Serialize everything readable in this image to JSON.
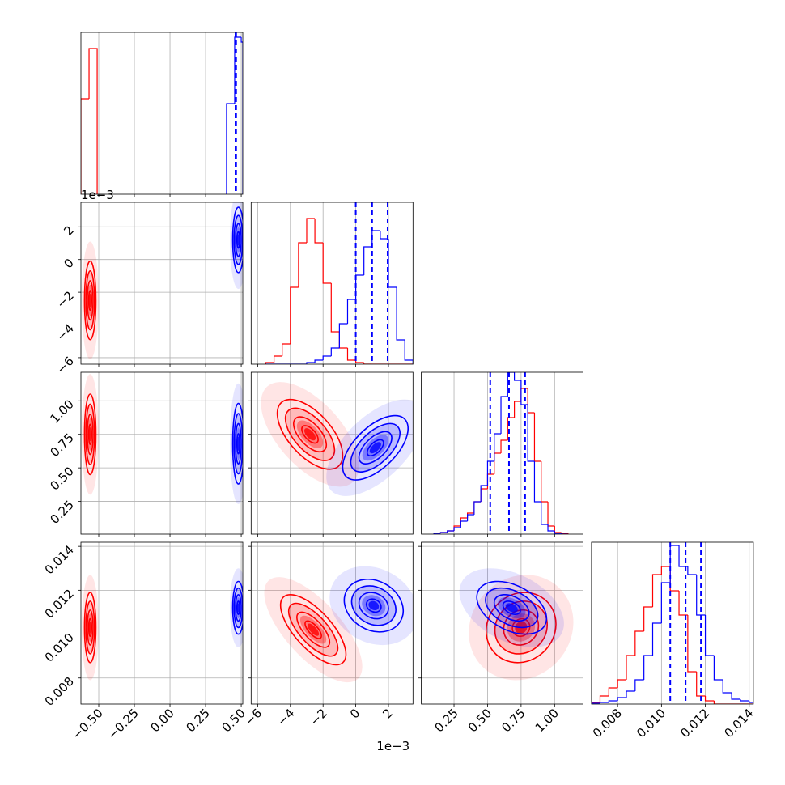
{
  "chart_data": {
    "type": "corner",
    "series": [
      {
        "color": "#ff0000"
      },
      {
        "color": "#0000ff"
      }
    ],
    "hist_ylim": [
      0,
      1
    ],
    "variables": [
      {
        "lim": [
          -0.625,
          0.511
        ],
        "ticks": [
          {
            "value": -0.5,
            "label": "−0.50"
          },
          {
            "value": -0.25,
            "label": "−0.25"
          },
          {
            "value": 0,
            "label": "0.00"
          },
          0.25,
          {
            "value": 0.5,
            "label": "0.50"
          }
        ],
        "hists": [
          {
            "bins": [
              -0.625,
              -0.568,
              -0.511
            ],
            "counts": [
              0.59,
              0.9
            ]
          },
          {
            "bins": [
              0.397,
              0.454,
              0.5,
              0.511
            ],
            "counts": [
              0.56,
              0.97,
              0.94
            ],
            "quantiles": [
              0.46,
              0.462,
              0.464
            ]
          }
        ]
      },
      {
        "lim": [
          -6.4,
          3.5
        ],
        "offset": "1e−3",
        "ticks": [
          {
            "value": -6,
            "label": "−6"
          },
          {
            "value": -4,
            "label": "−4"
          },
          {
            "value": -2,
            "label": "−2"
          },
          0,
          2
        ],
        "hists": [
          {
            "bins": [
              -5.5,
              -5,
              -4.5,
              -4,
              -3.5,
              -3,
              -2.5,
              -2,
              -1.5,
              -1,
              -0.5,
              0,
              0.5,
              1,
              1.5,
              2,
              2.5,
              3,
              3.5
            ],
            "counts": [
              0.01,
              0.05,
              0.125,
              0.475,
              0.75,
              0.9,
              0.75,
              0.5,
              0.2,
              0.1,
              0.025,
              0.01,
              0,
              0,
              0,
              0,
              0,
              0
            ]
          },
          {
            "bins": [
              -5.5,
              -5,
              -4.5,
              -4,
              -3.5,
              -3,
              -2.5,
              -2,
              -1.5,
              -1,
              -0.5,
              0,
              0.5,
              1,
              1.5,
              2,
              2.5,
              3,
              3.5
            ],
            "counts": [
              0,
              0,
              0,
              0,
              0,
              0.01,
              0.025,
              0.05,
              0.1,
              0.25,
              0.4,
              0.55,
              0.725,
              0.825,
              0.775,
              0.475,
              0.15,
              0.025
            ],
            "quantiles": [
              0,
              1,
              1.95
            ]
          }
        ]
      },
      {
        "lim": [
          0.006,
          1.213
        ],
        "ticks": [
          0.25,
          {
            "value": 0.5,
            "label": "0.50"
          },
          0.75,
          {
            "value": 1,
            "label": "1.00"
          }
        ],
        "hists": [
          {
            "bins": [
              0.1,
              0.15,
              0.2,
              0.25,
              0.3,
              0.35,
              0.4,
              0.45,
              0.5,
              0.55,
              0.6,
              0.65,
              0.7,
              0.75,
              0.8,
              0.85,
              0.9,
              0.95,
              1.0,
              1.05,
              1.1
            ],
            "counts": [
              0.005,
              0.01,
              0.02,
              0.05,
              0.1,
              0.13,
              0.2,
              0.28,
              0.37,
              0.5,
              0.58,
              0.72,
              0.82,
              0.9,
              0.75,
              0.45,
              0.2,
              0.05,
              0.01,
              0.005
            ]
          },
          {
            "bins": [
              0.1,
              0.15,
              0.2,
              0.25,
              0.3,
              0.35,
              0.4,
              0.45,
              0.5,
              0.55,
              0.6,
              0.65,
              0.7,
              0.75,
              0.8,
              0.85,
              0.9,
              0.95,
              1.0,
              1.05,
              1.1
            ],
            "counts": [
              0.005,
              0.01,
              0.02,
              0.04,
              0.08,
              0.12,
              0.2,
              0.3,
              0.45,
              0.62,
              0.85,
              1.0,
              0.95,
              0.8,
              0.45,
              0.2,
              0.06,
              0.02,
              0.005,
              0
            ],
            "quantiles": [
              0.52,
              0.66,
              0.78
            ]
          }
        ]
      },
      {
        "lim": [
          0.00681,
          0.01419
        ],
        "ticks": [
          0.008,
          {
            "value": 0.01,
            "label": "0.010"
          },
          0.012,
          0.014
        ],
        "hists": [
          {
            "bins": [
              0.0068,
              0.0072,
              0.0076,
              0.008,
              0.0084,
              0.0088,
              0.0092,
              0.0096,
              0.01,
              0.0104,
              0.0108,
              0.0112,
              0.0116,
              0.012,
              0.0124,
              0.0128,
              0.0132,
              0.0136,
              0.014,
              0.0144
            ],
            "counts": [
              0.01,
              0.05,
              0.1,
              0.15,
              0.3,
              0.45,
              0.6,
              0.8,
              0.85,
              0.7,
              0.55,
              0.2,
              0.05,
              0.02,
              0,
              0,
              0,
              0,
              0
            ]
          },
          {
            "bins": [
              0.0068,
              0.0072,
              0.0076,
              0.008,
              0.0084,
              0.0088,
              0.0092,
              0.0096,
              0.01,
              0.0104,
              0.0108,
              0.0112,
              0.0116,
              0.012,
              0.0124,
              0.0128,
              0.0132,
              0.0136,
              0.014,
              0.0144
            ],
            "counts": [
              0.005,
              0.01,
              0.02,
              0.04,
              0.08,
              0.15,
              0.3,
              0.5,
              0.75,
              0.98,
              0.85,
              0.8,
              0.55,
              0.3,
              0.15,
              0.07,
              0.03,
              0.02,
              0.01
            ],
            "quantiles": [
              0.0104,
              0.0111,
              0.0118
            ]
          }
        ]
      }
    ],
    "pairs": [
      {
        "clouds": [
          {
            "center": [
              -0.56,
              -2.5
            ],
            "spread": [
              0.02,
              1.2
            ],
            "corr": 0
          },
          {
            "center": [
              0.48,
              1.2
            ],
            "spread": [
              0.02,
              1.0
            ],
            "corr": 0
          }
        ]
      },
      {
        "clouds": [
          {
            "center": [
              -0.56,
              0.75
            ],
            "spread": [
              0.02,
              0.15
            ],
            "corr": 0
          },
          {
            "center": [
              0.48,
              0.68
            ],
            "spread": [
              0.02,
              0.15
            ],
            "corr": 0
          }
        ]
      },
      {
        "clouds": [
          {
            "center": [
              -2.8,
              0.75
            ],
            "spread": [
              1.0,
              0.13
            ],
            "corr": -0.6
          },
          {
            "center": [
              1.2,
              0.65
            ],
            "spread": [
              1.0,
              0.12
            ],
            "corr": 0.6
          }
        ]
      },
      {
        "clouds": [
          {
            "center": [
              -0.56,
              0.0103
            ],
            "spread": [
              0.02,
              0.0008
            ],
            "corr": 0
          },
          {
            "center": [
              0.48,
              0.0112
            ],
            "spread": [
              0.02,
              0.0006
            ],
            "corr": 0
          }
        ]
      },
      {
        "clouds": [
          {
            "center": [
              -2.6,
              0.0102
            ],
            "spread": [
              1.0,
              0.0008
            ],
            "corr": -0.7
          },
          {
            "center": [
              1.1,
              0.0113
            ],
            "spread": [
              0.9,
              0.0006
            ],
            "corr": -0.2
          }
        ]
      },
      {
        "clouds": [
          {
            "center": [
              0.75,
              0.0103
            ],
            "spread": [
              0.13,
              0.0008
            ],
            "corr": 0.1
          },
          {
            "center": [
              0.68,
              0.0112
            ],
            "spread": [
              0.13,
              0.0006
            ],
            "corr": -0.4
          }
        ]
      }
    ]
  }
}
